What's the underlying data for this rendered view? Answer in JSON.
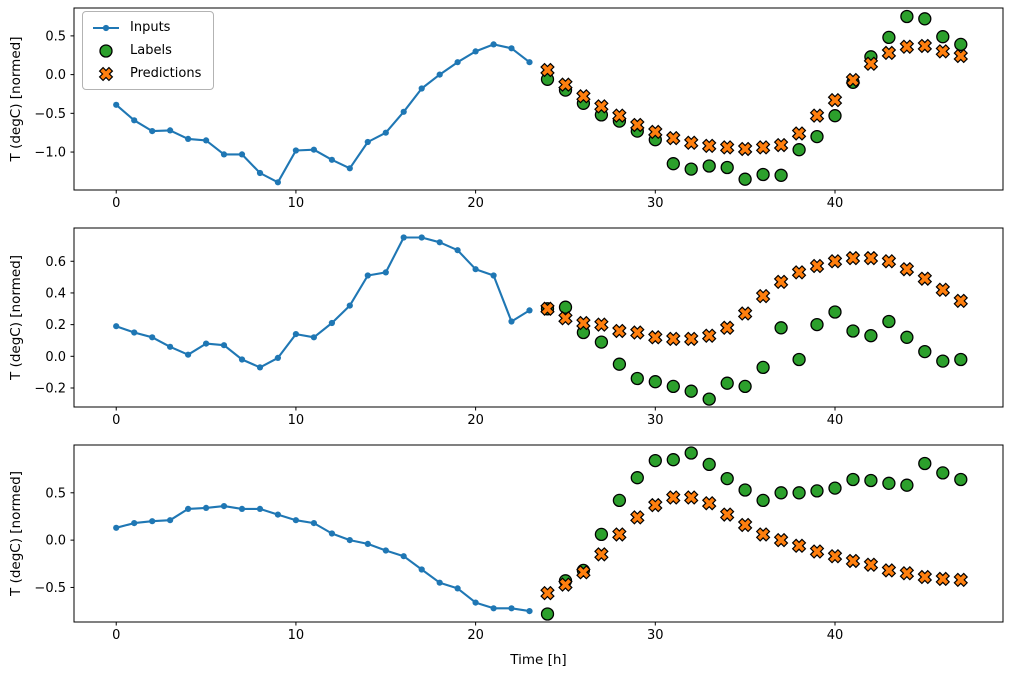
{
  "figure": {
    "xlabel": "Time [h]",
    "background": "#ffffff",
    "colors": {
      "inputs": "#1f77b4",
      "labels": "#2ca02c",
      "predictions": "#ff7f0e",
      "marker_edge": "#000000",
      "axis": "#000000",
      "legend_border": "#b3b3b3"
    },
    "legend": {
      "position": "upper-left",
      "items": [
        {
          "label": "Inputs",
          "marker": "line-dot",
          "color": "#1f77b4"
        },
        {
          "label": "Labels",
          "marker": "circle",
          "color": "#2ca02c"
        },
        {
          "label": "Predictions",
          "marker": "x-cross",
          "color": "#ff7f0e"
        }
      ]
    }
  },
  "chart_data": [
    {
      "type": "line",
      "subplot": 1,
      "ylabel": "T (degC) [normed]",
      "xlim": [
        -2.35,
        49.35
      ],
      "ylim": [
        -1.49,
        0.86
      ],
      "xticks": [
        0,
        10,
        20,
        30,
        40
      ],
      "xtick_labels": [
        "0",
        "10",
        "20",
        "30",
        "40"
      ],
      "yticks": [
        0.5,
        0.0,
        -0.5,
        -1.0
      ],
      "ytick_labels": [
        "0.5",
        "0.0",
        "−0.5",
        "−1.0"
      ],
      "grid": false,
      "series": [
        {
          "name": "Inputs",
          "type": "line",
          "x": [
            0,
            1,
            2,
            3,
            4,
            5,
            6,
            7,
            8,
            9,
            10,
            11,
            12,
            13,
            14,
            15,
            16,
            17,
            18,
            19,
            20,
            21,
            22,
            23
          ],
          "values": [
            -0.39,
            -0.59,
            -0.73,
            -0.72,
            -0.83,
            -0.85,
            -1.03,
            -1.03,
            -1.27,
            -1.39,
            -0.98,
            -0.97,
            -1.1,
            -1.21,
            -0.87,
            -0.75,
            -0.48,
            -0.18,
            0.0,
            0.16,
            0.3,
            0.39,
            0.34,
            0.16
          ]
        },
        {
          "name": "Labels",
          "type": "scatter",
          "x": [
            24,
            25,
            26,
            27,
            28,
            29,
            30,
            31,
            32,
            33,
            34,
            35,
            36,
            37,
            38,
            39,
            40,
            41,
            42,
            43,
            44,
            45,
            46,
            47
          ],
          "values": [
            -0.06,
            -0.2,
            -0.37,
            -0.52,
            -0.6,
            -0.73,
            -0.84,
            -1.15,
            -1.22,
            -1.18,
            -1.2,
            -1.35,
            -1.29,
            -1.3,
            -0.97,
            -0.8,
            -0.53,
            -0.1,
            0.23,
            0.48,
            0.75,
            0.72,
            0.49,
            0.39
          ]
        },
        {
          "name": "Predictions",
          "type": "scatter",
          "x": [
            24,
            25,
            26,
            27,
            28,
            29,
            30,
            31,
            32,
            33,
            34,
            35,
            36,
            37,
            38,
            39,
            40,
            41,
            42,
            43,
            44,
            45,
            46,
            47
          ],
          "values": [
            0.06,
            -0.13,
            -0.28,
            -0.41,
            -0.53,
            -0.65,
            -0.74,
            -0.82,
            -0.88,
            -0.92,
            -0.94,
            -0.96,
            -0.94,
            -0.91,
            -0.76,
            -0.53,
            -0.33,
            -0.07,
            0.14,
            0.28,
            0.36,
            0.37,
            0.3,
            0.24
          ]
        }
      ]
    },
    {
      "type": "line",
      "subplot": 2,
      "ylabel": "T (degC) [normed]",
      "xlim": [
        -2.35,
        49.35
      ],
      "ylim": [
        -0.32,
        0.81
      ],
      "xticks": [
        0,
        10,
        20,
        30,
        40
      ],
      "xtick_labels": [
        "0",
        "10",
        "20",
        "30",
        "40"
      ],
      "yticks": [
        0.6,
        0.4,
        0.2,
        0.0,
        -0.2
      ],
      "ytick_labels": [
        "0.6",
        "0.4",
        "0.2",
        "0.0",
        "−0.2"
      ],
      "grid": false,
      "series": [
        {
          "name": "Inputs",
          "type": "line",
          "x": [
            0,
            1,
            2,
            3,
            4,
            5,
            6,
            7,
            8,
            9,
            10,
            11,
            12,
            13,
            14,
            15,
            16,
            17,
            18,
            19,
            20,
            21,
            22,
            23
          ],
          "values": [
            0.19,
            0.15,
            0.12,
            0.06,
            0.01,
            0.08,
            0.07,
            -0.02,
            -0.07,
            -0.01,
            0.14,
            0.12,
            0.21,
            0.32,
            0.51,
            0.53,
            0.75,
            0.75,
            0.72,
            0.67,
            0.55,
            0.51,
            0.22,
            0.29
          ]
        },
        {
          "name": "Labels",
          "type": "scatter",
          "x": [
            24,
            25,
            26,
            27,
            28,
            29,
            30,
            31,
            32,
            33,
            34,
            35,
            36,
            37,
            38,
            39,
            40,
            41,
            42,
            43,
            44,
            45,
            46,
            47
          ],
          "values": [
            0.3,
            0.31,
            0.15,
            0.09,
            -0.05,
            -0.14,
            -0.16,
            -0.19,
            -0.22,
            -0.27,
            -0.17,
            -0.19,
            -0.07,
            0.18,
            -0.02,
            0.2,
            0.28,
            0.16,
            0.13,
            0.22,
            0.12,
            0.03,
            -0.03,
            -0.02
          ]
        },
        {
          "name": "Predictions",
          "type": "scatter",
          "x": [
            24,
            25,
            26,
            27,
            28,
            29,
            30,
            31,
            32,
            33,
            34,
            35,
            36,
            37,
            38,
            39,
            40,
            41,
            42,
            43,
            44,
            45,
            46,
            47
          ],
          "values": [
            0.3,
            0.24,
            0.21,
            0.2,
            0.16,
            0.15,
            0.12,
            0.11,
            0.11,
            0.13,
            0.18,
            0.27,
            0.38,
            0.47,
            0.53,
            0.57,
            0.6,
            0.62,
            0.62,
            0.6,
            0.55,
            0.49,
            0.42,
            0.35
          ]
        }
      ]
    },
    {
      "type": "line",
      "subplot": 3,
      "ylabel": "T (degC) [normed]",
      "xlim": [
        -2.35,
        49.35
      ],
      "ylim": [
        -0.865,
        1.005
      ],
      "xticks": [
        0,
        10,
        20,
        30,
        40
      ],
      "xtick_labels": [
        "0",
        "10",
        "20",
        "30",
        "40"
      ],
      "yticks": [
        0.5,
        0.0,
        -0.5
      ],
      "ytick_labels": [
        "0.5",
        "0.0",
        "−0.5"
      ],
      "grid": false,
      "series": [
        {
          "name": "Inputs",
          "type": "line",
          "x": [
            0,
            1,
            2,
            3,
            4,
            5,
            6,
            7,
            8,
            9,
            10,
            11,
            12,
            13,
            14,
            15,
            16,
            17,
            18,
            19,
            20,
            21,
            22,
            23
          ],
          "values": [
            0.13,
            0.18,
            0.2,
            0.21,
            0.33,
            0.34,
            0.36,
            0.33,
            0.33,
            0.27,
            0.21,
            0.18,
            0.07,
            0.0,
            -0.04,
            -0.11,
            -0.17,
            -0.31,
            -0.45,
            -0.51,
            -0.66,
            -0.72,
            -0.72,
            -0.75
          ]
        },
        {
          "name": "Labels",
          "type": "scatter",
          "x": [
            24,
            25,
            26,
            27,
            28,
            29,
            30,
            31,
            32,
            33,
            34,
            35,
            36,
            37,
            38,
            39,
            40,
            41,
            42,
            43,
            44,
            45,
            46,
            47
          ],
          "values": [
            -0.78,
            -0.43,
            -0.32,
            0.06,
            0.42,
            0.66,
            0.84,
            0.85,
            0.92,
            0.8,
            0.65,
            0.53,
            0.42,
            0.5,
            0.5,
            0.52,
            0.55,
            0.64,
            0.63,
            0.6,
            0.58,
            0.81,
            0.71,
            0.64
          ]
        },
        {
          "name": "Predictions",
          "type": "scatter",
          "x": [
            24,
            25,
            26,
            27,
            28,
            29,
            30,
            31,
            32,
            33,
            34,
            35,
            36,
            37,
            38,
            39,
            40,
            41,
            42,
            43,
            44,
            45,
            46,
            47
          ],
          "values": [
            -0.56,
            -0.47,
            -0.34,
            -0.15,
            0.06,
            0.24,
            0.37,
            0.45,
            0.45,
            0.39,
            0.27,
            0.16,
            0.06,
            0.0,
            -0.06,
            -0.12,
            -0.17,
            -0.22,
            -0.26,
            -0.32,
            -0.35,
            -0.39,
            -0.41,
            -0.42
          ]
        }
      ]
    }
  ]
}
